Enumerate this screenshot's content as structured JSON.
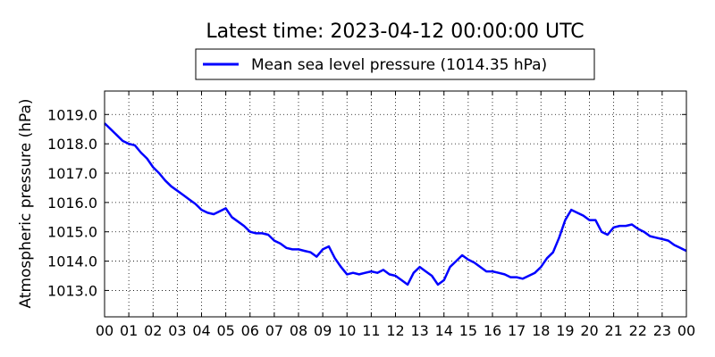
{
  "chart_data": {
    "type": "line",
    "title": "Latest time: 2023-04-12 00:00:00 UTC",
    "ylabel": "Atmospheric pressure (hPa)",
    "xlabel": "",
    "xlim": [
      0,
      24
    ],
    "ylim": [
      1012.1,
      1019.8
    ],
    "xticks": [
      "00",
      "01",
      "02",
      "03",
      "04",
      "05",
      "06",
      "07",
      "08",
      "09",
      "10",
      "11",
      "12",
      "13",
      "14",
      "15",
      "16",
      "17",
      "18",
      "19",
      "20",
      "21",
      "22",
      "23",
      "00"
    ],
    "yticks": [
      "1013.0",
      "1014.0",
      "1015.0",
      "1016.0",
      "1017.0",
      "1018.0",
      "1019.0"
    ],
    "grid": true,
    "legend_position": "top-center",
    "series": [
      {
        "name": "Mean sea level pressure (1014.35 hPa)",
        "color": "#0000ff",
        "x": [
          0,
          0.25,
          0.5,
          0.75,
          1.0,
          1.25,
          1.5,
          1.75,
          2.0,
          2.25,
          2.5,
          2.75,
          3.0,
          3.25,
          3.5,
          3.75,
          4.0,
          4.25,
          4.5,
          4.75,
          5.0,
          5.25,
          5.5,
          5.75,
          6.0,
          6.25,
          6.5,
          6.75,
          7.0,
          7.25,
          7.5,
          7.75,
          8.0,
          8.25,
          8.5,
          8.75,
          9.0,
          9.25,
          9.5,
          9.75,
          10.0,
          10.25,
          10.5,
          10.75,
          11.0,
          11.25,
          11.5,
          11.75,
          12.0,
          12.25,
          12.5,
          12.75,
          13.0,
          13.25,
          13.5,
          13.75,
          14.0,
          14.25,
          14.5,
          14.75,
          15.0,
          15.25,
          15.5,
          15.75,
          16.0,
          16.25,
          16.5,
          16.75,
          17.0,
          17.25,
          17.5,
          17.75,
          18.0,
          18.25,
          18.5,
          18.75,
          19.0,
          19.25,
          19.5,
          19.75,
          20.0,
          20.25,
          20.5,
          20.75,
          21.0,
          21.25,
          21.5,
          21.75,
          22.0,
          22.25,
          22.5,
          22.75,
          23.0,
          23.25,
          23.5,
          23.75,
          24.0
        ],
        "values": [
          1018.7,
          1018.5,
          1018.3,
          1018.1,
          1018.0,
          1017.95,
          1017.7,
          1017.5,
          1017.2,
          1017.0,
          1016.75,
          1016.55,
          1016.4,
          1016.25,
          1016.1,
          1015.95,
          1015.75,
          1015.65,
          1015.6,
          1015.7,
          1015.8,
          1015.5,
          1015.35,
          1015.2,
          1015.0,
          1014.95,
          1014.95,
          1014.9,
          1014.7,
          1014.6,
          1014.45,
          1014.4,
          1014.4,
          1014.35,
          1014.3,
          1014.15,
          1014.4,
          1014.5,
          1014.1,
          1013.8,
          1013.55,
          1013.6,
          1013.55,
          1013.6,
          1013.65,
          1013.6,
          1013.7,
          1013.55,
          1013.5,
          1013.35,
          1013.2,
          1013.6,
          1013.8,
          1013.65,
          1013.5,
          1013.2,
          1013.35,
          1013.8,
          1014.0,
          1014.2,
          1014.05,
          1013.95,
          1013.8,
          1013.65,
          1013.65,
          1013.6,
          1013.55,
          1013.45,
          1013.45,
          1013.4,
          1013.5,
          1013.6,
          1013.8,
          1014.1,
          1014.3,
          1014.8,
          1015.4,
          1015.75,
          1015.65,
          1015.55,
          1015.4,
          1015.4,
          1015.0,
          1014.9,
          1015.15,
          1015.2,
          1015.2,
          1015.25,
          1015.1,
          1015.0,
          1014.85,
          1014.8,
          1014.75,
          1014.7,
          1014.55,
          1014.45,
          1014.35
        ]
      }
    ]
  }
}
